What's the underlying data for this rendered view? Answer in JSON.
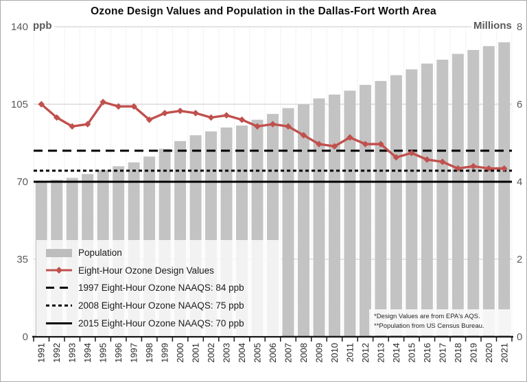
{
  "title": "Ozone Design Values and Population in the Dallas-Fort Worth Area",
  "left_axis": {
    "unit": "ppb",
    "ticks": [
      140,
      105,
      70,
      35,
      0
    ],
    "min": 0,
    "max": 140
  },
  "right_axis": {
    "unit": "Millions",
    "ticks": [
      8,
      6,
      4,
      2,
      0
    ],
    "min": 0,
    "max": 8
  },
  "legend": {
    "items": [
      {
        "label": "Population",
        "swatch": "bar"
      },
      {
        "label": "Eight-Hour Ozone Design Values",
        "swatch": "line-marker"
      },
      {
        "label": "1997 Eight-Hour Ozone NAAQS: 84 ppb",
        "swatch": "long-dash"
      },
      {
        "label": "2008 Eight-Hour Ozone NAAQS: 75 ppb",
        "swatch": "short-dash"
      },
      {
        "label": "2015 Eight-Hour Ozone NAAQS: 70 ppb",
        "swatch": "solid"
      }
    ]
  },
  "footnotes": {
    "line1": "*Design Values are from EPA's AQS.",
    "line2": "**Population from US Census Bureau."
  },
  "colors": {
    "bar": "#c3c3c3",
    "line": "#c0504d",
    "reference": "#000000",
    "grid": "#c9c9c9",
    "grid_vertical": "#dadada",
    "axis_text": "#595959",
    "year_text": "#262626"
  },
  "chart_data": {
    "type": "combo",
    "categories": [
      1991,
      1992,
      1993,
      1994,
      1995,
      1996,
      1997,
      1998,
      1999,
      2000,
      2001,
      2002,
      2003,
      2004,
      2005,
      2006,
      2007,
      2008,
      2009,
      2010,
      2011,
      2012,
      2013,
      2014,
      2015,
      2016,
      2017,
      2018,
      2019,
      2020,
      2021
    ],
    "series": [
      {
        "name": "Population",
        "type": "bar",
        "axis": "right",
        "unit": "millions",
        "values": [
          4.0,
          4.05,
          4.1,
          4.2,
          4.3,
          4.4,
          4.5,
          4.65,
          4.85,
          5.05,
          5.2,
          5.3,
          5.4,
          5.45,
          5.6,
          5.75,
          5.9,
          6.0,
          6.15,
          6.25,
          6.35,
          6.5,
          6.6,
          6.75,
          6.9,
          7.05,
          7.15,
          7.3,
          7.4,
          7.5,
          7.6
        ]
      },
      {
        "name": "Eight-Hour Ozone Design Values",
        "type": "line",
        "axis": "left",
        "unit": "ppb",
        "values": [
          105,
          99,
          95,
          96,
          106,
          104,
          104,
          98,
          101,
          102,
          101,
          99,
          100,
          98,
          95,
          96,
          95,
          91,
          87,
          86,
          90,
          87,
          87,
          81,
          83,
          80,
          79,
          76,
          77,
          76,
          76
        ]
      }
    ],
    "reference_lines": [
      {
        "label": "1997 Eight-Hour Ozone NAAQS: 84 ppb",
        "value": 84,
        "style": "long-dash"
      },
      {
        "label": "2008 Eight-Hour Ozone NAAQS: 75 ppb",
        "value": 75,
        "style": "short-dash"
      },
      {
        "label": "2015 Eight-Hour Ozone NAAQS: 70 ppb",
        "value": 70,
        "style": "solid"
      }
    ],
    "left_ylim": [
      0,
      140
    ],
    "right_ylim": [
      0,
      8
    ],
    "grid": true,
    "legend_position": "bottom-left"
  }
}
